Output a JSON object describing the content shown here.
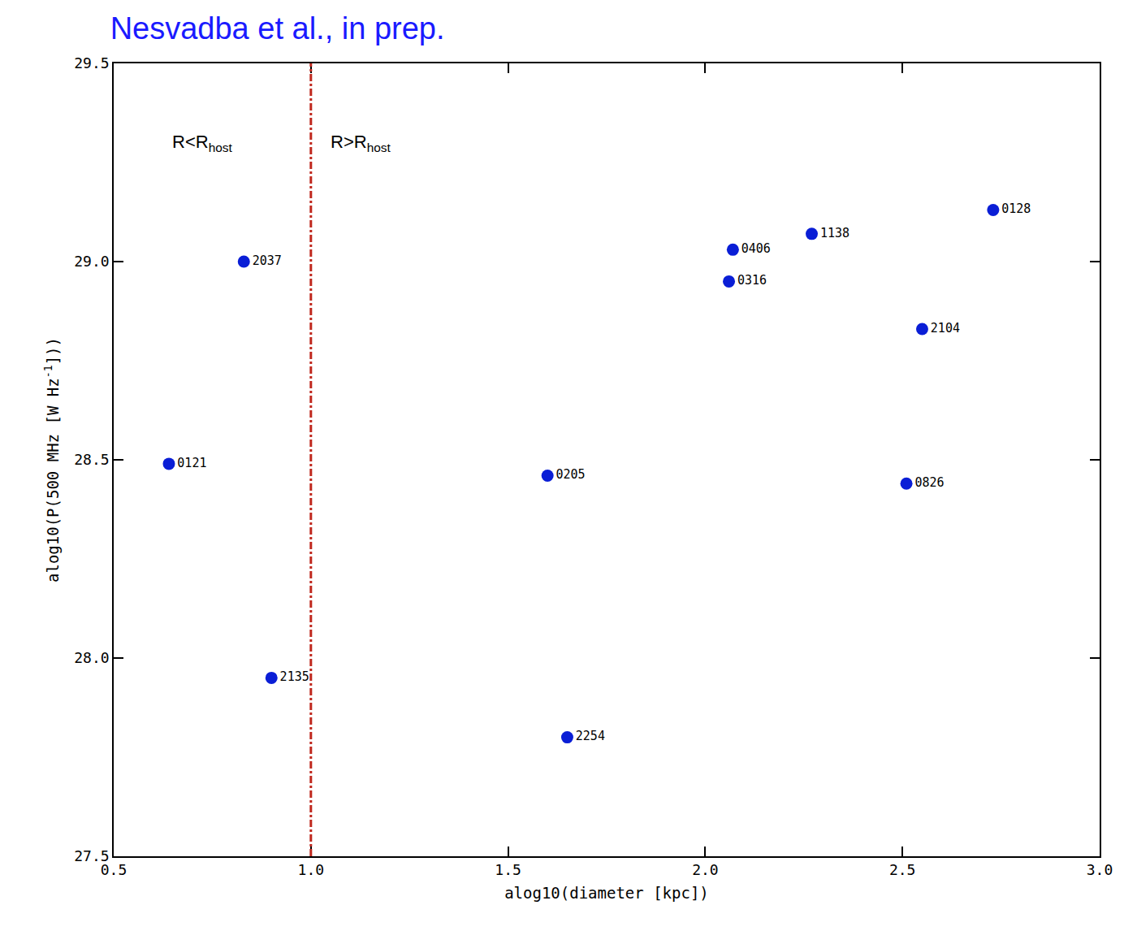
{
  "chart_data": {
    "type": "scatter",
    "title": "Nesvadba et al., in prep.",
    "x_label": "alog10(diameter [kpc])",
    "y_label": {
      "text": "alog10(P(500 MHz [W Hz",
      "superscript": "-1",
      "suffix": "]))"
    },
    "points": [
      {
        "label": "0121",
        "x": 0.64,
        "y": 28.49
      },
      {
        "label": "2037",
        "x": 0.83,
        "y": 29.0
      },
      {
        "label": "2135",
        "x": 0.9,
        "y": 27.95
      },
      {
        "label": "0205",
        "x": 1.6,
        "y": 28.46
      },
      {
        "label": "2254",
        "x": 1.65,
        "y": 27.8
      },
      {
        "label": "0316",
        "x": 2.06,
        "y": 28.95
      },
      {
        "label": "0406",
        "x": 2.07,
        "y": 29.03
      },
      {
        "label": "1138",
        "x": 2.27,
        "y": 29.07
      },
      {
        "label": "0826",
        "x": 2.51,
        "y": 28.44
      },
      {
        "label": "2104",
        "x": 2.55,
        "y": 28.83
      },
      {
        "label": "0128",
        "x": 2.73,
        "y": 29.13
      }
    ],
    "color": "#0a1ed6",
    "marker": "circle",
    "reference_line": {
      "x": 1.0,
      "color": "#c0281e",
      "line_style": "dashdot"
    },
    "regions": [
      {
        "text": "R<R",
        "subscript": "host"
      },
      {
        "text": "R>R",
        "subscript": "host"
      }
    ],
    "xlim": [
      0.5,
      3.0
    ],
    "xticks": [
      {
        "value": 0.5,
        "label": "0.5"
      },
      {
        "value": 1.0,
        "label": "1.0"
      },
      {
        "value": 1.5,
        "label": "1.5"
      },
      {
        "value": 2.0,
        "label": "2.0"
      },
      {
        "value": 2.5,
        "label": "2.5"
      },
      {
        "value": 3.0,
        "label": "3.0"
      }
    ],
    "ylim": [
      27.5,
      29.5
    ],
    "yticks": [
      {
        "value": 27.5,
        "label": "27.5"
      },
      {
        "value": 28.0,
        "label": "28.0"
      },
      {
        "value": 28.5,
        "label": "28.5"
      },
      {
        "value": 29.0,
        "label": "29.0"
      },
      {
        "value": 29.5,
        "label": "29.5"
      }
    ],
    "grid": false
  }
}
